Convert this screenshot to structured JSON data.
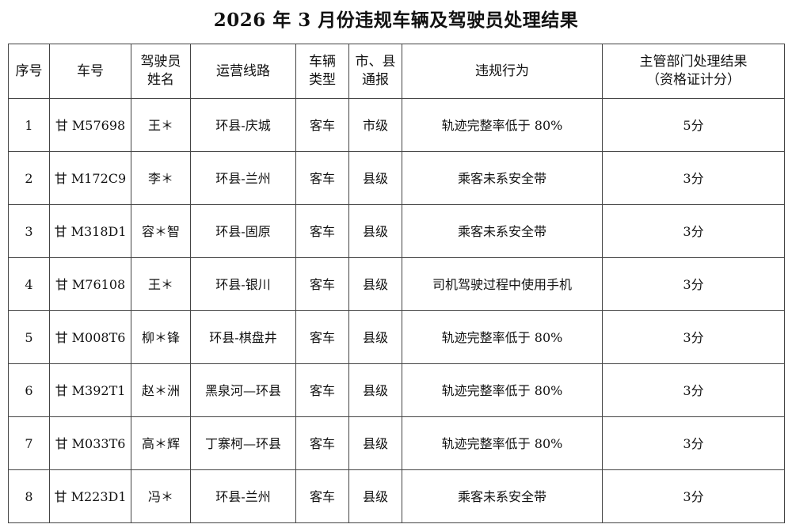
{
  "title": "2026 年 3 月份违规车辆及驾驶员处理结果",
  "headers": [
    "序号",
    "车号",
    "驾驶员姓名",
    "运营线路",
    "车辆类型",
    "市、县通报",
    "违规行为",
    "主管部门处理结果（资格证计分）"
  ],
  "header_lines": [
    [
      "序号"
    ],
    [
      "车号"
    ],
    [
      "驾驶员",
      "姓名"
    ],
    [
      "运营线路"
    ],
    [
      "车辆",
      "类型"
    ],
    [
      "市、县",
      "通报"
    ],
    [
      "违规行为"
    ],
    [
      "主管部门处理结果",
      "（资格证计分）"
    ]
  ],
  "rows": [
    {
      "no": "1",
      "plate": "甘 M57698",
      "driver": "王＊",
      "route": "环县-庆城",
      "type": "客车",
      "level": "市级",
      "violation": "轨迹完整率低于 80%",
      "result": "5分"
    },
    {
      "no": "2",
      "plate": "甘 M172C9",
      "driver": "李＊",
      "route": "环县-兰州",
      "type": "客车",
      "level": "县级",
      "violation": "乘客未系安全带",
      "result": "3分"
    },
    {
      "no": "3",
      "plate": "甘 M318D1",
      "driver": "容＊智",
      "route": "环县-固原",
      "type": "客车",
      "level": "县级",
      "violation": "乘客未系安全带",
      "result": "3分"
    },
    {
      "no": "4",
      "plate": "甘 M76108",
      "driver": "王＊",
      "route": "环县-银川",
      "type": "客车",
      "level": "县级",
      "violation": "司机驾驶过程中使用手机",
      "result": "3分"
    },
    {
      "no": "5",
      "plate": "甘 M008T6",
      "driver": "柳＊锋",
      "route": "环县-棋盘井",
      "type": "客车",
      "level": "县级",
      "violation": "轨迹完整率低于 80%",
      "result": "3分"
    },
    {
      "no": "6",
      "plate": "甘 M392T1",
      "driver": "赵＊洲",
      "route": "黑泉河—环县",
      "type": "客车",
      "level": "县级",
      "violation": "轨迹完整率低于 80%",
      "result": "3分"
    },
    {
      "no": "7",
      "plate": "甘 M033T6",
      "driver": "高＊辉",
      "route": "丁寨柯—环县",
      "type": "客车",
      "level": "县级",
      "violation": "轨迹完整率低于 80%",
      "result": "3分"
    },
    {
      "no": "8",
      "plate": "甘 M223D1",
      "driver": "冯＊",
      "route": "环县-兰州",
      "type": "客车",
      "level": "县级",
      "violation": "乘客未系安全带",
      "result": "3分"
    }
  ]
}
